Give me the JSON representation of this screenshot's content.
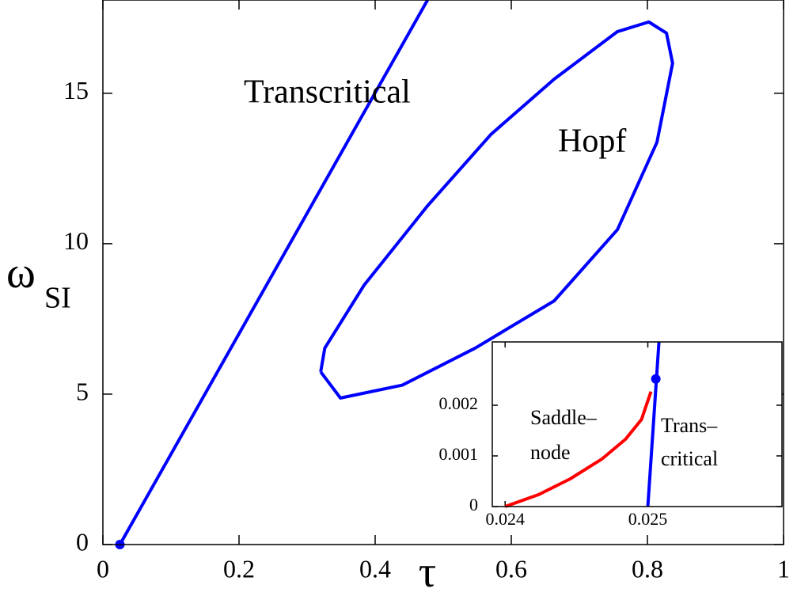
{
  "chart_data": [
    {
      "type": "line",
      "xlabel": "τ",
      "ylabel": "ω",
      "ylabel_subscript": "SI",
      "xlim": [
        0,
        1
      ],
      "ylim": [
        0,
        18.1
      ],
      "xticks": [
        0,
        0.2,
        0.4,
        0.6,
        0.8,
        1
      ],
      "yticks": [
        0,
        5,
        10,
        15
      ],
      "series": [
        {
          "color": "#0000ff",
          "x": [
            0.025,
            0.477
          ],
          "values": [
            0,
            18.1
          ]
        },
        {
          "color": "#0000ff",
          "x": [
            0.32,
            0.349,
            0.44,
            0.547,
            0.663,
            0.756,
            0.814,
            0.837,
            0.828,
            0.802,
            0.756,
            0.663,
            0.57,
            0.477,
            0.384,
            0.326,
            0.32
          ],
          "values": [
            5.74,
            4.87,
            5.3,
            6.53,
            8.1,
            10.47,
            13.37,
            16.0,
            17.0,
            17.37,
            17.05,
            15.47,
            13.63,
            11.26,
            8.63,
            6.53,
            5.74
          ]
        }
      ],
      "points": {
        "color": "#0000ff",
        "x": [
          0.025
        ],
        "values": [
          0
        ]
      },
      "annotations": [
        "Transcritical",
        "Hopf"
      ]
    },
    {
      "type": "line",
      "xlim": [
        0.02391,
        0.02594
      ],
      "ylim": [
        0,
        0.00325
      ],
      "xticks": [
        0.024,
        0.025
      ],
      "yticks": [
        0,
        0.001,
        0.002
      ],
      "series": [
        {
          "color": "#ff0000",
          "x": [
            0.024,
            0.024233,
            0.024456,
            0.024678,
            0.024844,
            0.024956,
            0.025022
          ],
          "values": [
            0,
            0.000234,
            0.000547,
            0.000938,
            0.00133,
            0.00172,
            0.00227
          ]
        },
        {
          "color": "#0000ff",
          "x": [
            0.025,
            0.025078
          ],
          "values": [
            0,
            0.00325
          ]
        }
      ],
      "points": {
        "color": "#0000ff",
        "x": [
          0.025056
        ],
        "values": [
          0.00252
        ]
      },
      "annotations": [
        [
          "Saddle–",
          "node"
        ],
        [
          "Trans–",
          "critical"
        ]
      ]
    }
  ]
}
